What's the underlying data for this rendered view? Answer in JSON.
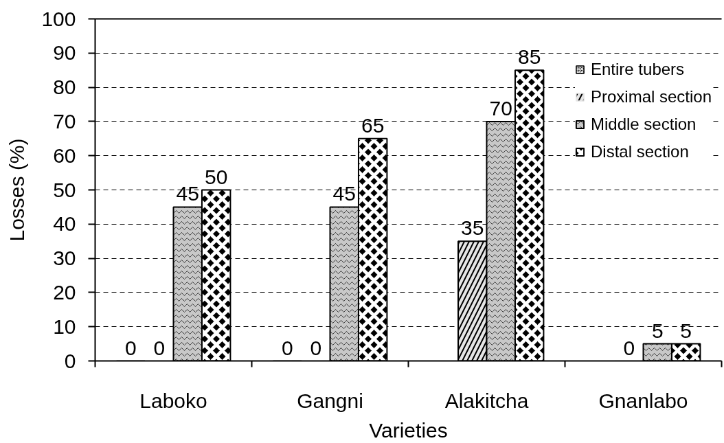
{
  "chart_data": {
    "type": "bar",
    "xlabel": "Varieties",
    "ylabel": "Losses (%)",
    "categories": [
      "Laboko",
      "Gangni",
      "Alakitcha",
      "Gnanlabo"
    ],
    "series": [
      {
        "name": "Entire tubers",
        "color": "#000000",
        "values": [
          0,
          0,
          null,
          null
        ]
      },
      {
        "name": "Proximal section",
        "color": "#e6e6e6",
        "values": [
          0,
          0,
          35,
          0
        ]
      },
      {
        "name": "Middle section",
        "color": "#c8c8c8",
        "values": [
          45,
          45,
          70,
          5
        ]
      },
      {
        "name": "Distal section",
        "color": "#000000",
        "values": [
          50,
          65,
          85,
          5
        ]
      }
    ],
    "ylim": [
      0,
      100
    ],
    "yticks": [
      0,
      10,
      20,
      30,
      40,
      50,
      60,
      70,
      80,
      90,
      100
    ],
    "grid": "y",
    "legend": "top right",
    "data_labels": true
  }
}
